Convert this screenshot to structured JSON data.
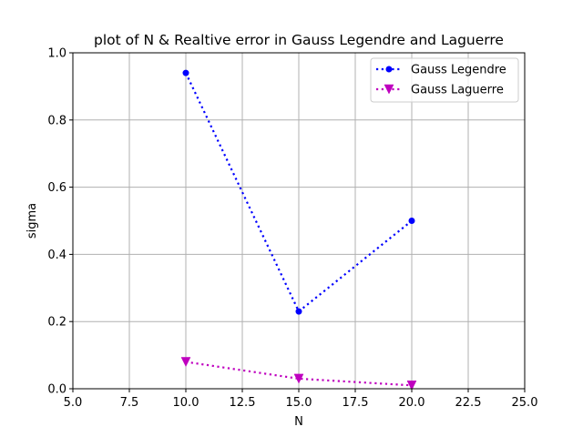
{
  "chart_data": {
    "type": "line",
    "title": "plot of N & Realtive error in Gauss Legendre and Laguerre",
    "xlabel": "N",
    "ylabel": "sigma",
    "xlim": [
      5.0,
      25.0
    ],
    "ylim": [
      0.0,
      1.0
    ],
    "xticks": [
      "5.0",
      "7.5",
      "10.0",
      "12.5",
      "15.0",
      "17.5",
      "20.0",
      "22.5",
      "25.0"
    ],
    "yticks": [
      "0.0",
      "0.2",
      "0.4",
      "0.6",
      "0.8",
      "1.0"
    ],
    "grid": true,
    "legend_position": "top-right",
    "x": [
      10,
      15,
      20
    ],
    "series": [
      {
        "name": "Gauss Legendre",
        "values": [
          0.94,
          0.23,
          0.5
        ],
        "color": "#0000ff",
        "marker": "circle",
        "linestyle": "dotted"
      },
      {
        "name": "Gauss Laguerre",
        "values": [
          0.08,
          0.03,
          0.01
        ],
        "color": "#bf00bf",
        "marker": "triangle-down",
        "linestyle": "dotted"
      }
    ]
  }
}
